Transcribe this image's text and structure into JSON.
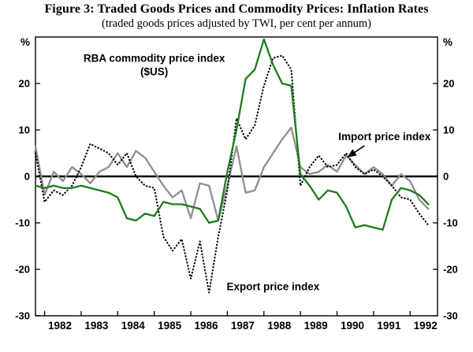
{
  "chart_data": {
    "type": "line",
    "title": "Figure 3: Traded Goods Prices and Commodity Prices: Inflation Rates",
    "subtitle": "(traded goods prices adjusted by TWI, per cent per annum)",
    "y_axis_unit": "%",
    "xlim": [
      1981.75,
      1992.75
    ],
    "ylim": [
      -30,
      30
    ],
    "y_ticks": [
      -30,
      -20,
      -10,
      0,
      10,
      20
    ],
    "x_tick_labels": [
      "1982",
      "1983",
      "1984",
      "1985",
      "1986",
      "1987",
      "1988",
      "1989",
      "1990",
      "1991",
      "1992"
    ],
    "grid": false,
    "legend": "in-plot text annotations",
    "x": [
      1981.75,
      1982,
      1982.25,
      1982.5,
      1982.75,
      1983,
      1983.25,
      1983.5,
      1983.75,
      1984,
      1984.25,
      1984.5,
      1984.75,
      1985,
      1985.25,
      1985.5,
      1985.75,
      1986,
      1986.25,
      1986.5,
      1986.75,
      1987,
      1987.25,
      1987.5,
      1987.75,
      1988,
      1988.25,
      1988.5,
      1988.75,
      1989,
      1989.25,
      1989.5,
      1989.75,
      1990,
      1990.25,
      1990.5,
      1990.75,
      1991,
      1991.25,
      1991.5,
      1991.75,
      1992,
      1992.25,
      1992.5
    ],
    "series": [
      {
        "id": "import-price-index",
        "name": "Import price index",
        "color": "#8f8f8f",
        "style": "solid",
        "width": 2.3,
        "values": [
          6.5,
          -4,
          1,
          -1,
          2,
          0.5,
          -1.5,
          1,
          2,
          5,
          2,
          5.5,
          4,
          1,
          -2,
          -4.5,
          -3,
          -9,
          -1.5,
          -2,
          -9.5,
          -2,
          6.5,
          -3.5,
          -3,
          2,
          5,
          8,
          10.5,
          2,
          0.5,
          1,
          2.5,
          1,
          4.5,
          2.5,
          0.5,
          2,
          0.5,
          -2,
          0.5,
          -1,
          -5,
          -7
        ]
      },
      {
        "id": "export-price-index",
        "name": "Export price index",
        "color": "#000000",
        "style": "dotted",
        "width": 2.1,
        "values": [
          5,
          -5.5,
          -3,
          -4,
          -2,
          2,
          7,
          6,
          5,
          2.5,
          5,
          0,
          -2,
          -2.5,
          -13,
          -16,
          -13.5,
          -22,
          -14,
          -25,
          -13,
          -3,
          12.5,
          8,
          11,
          19.5,
          25.5,
          26,
          23,
          -2,
          2,
          4.5,
          2,
          2.5,
          5,
          2,
          0.5,
          1.5,
          0,
          -2,
          -4.5,
          -5,
          -8,
          -10.5
        ]
      },
      {
        "id": "rba-commodity-price-index",
        "name": "RBA commodity price index ($US)",
        "color": "#1b7d1b",
        "style": "solid",
        "width": 2.3,
        "values": [
          -2,
          -2.5,
          -2,
          -2.5,
          -2.5,
          -2,
          -2.5,
          -3,
          -3.5,
          -4.5,
          -9,
          -9.5,
          -8,
          -8.5,
          -5.5,
          -6,
          -6,
          -6.5,
          -7,
          -10,
          -9.5,
          1,
          10,
          21,
          23,
          29.5,
          24,
          20,
          19.5,
          0.5,
          -2,
          -5,
          -3,
          -3.5,
          -6.5,
          -11,
          -10.5,
          -11,
          -11.5,
          -5,
          -2.5,
          -3,
          -4,
          -6
        ]
      }
    ],
    "annotations": [
      {
        "id": "rba-label-line1",
        "text": "RBA commodity price index",
        "x": 1985.0,
        "y": 24.7
      },
      {
        "id": "rba-label-line2",
        "text": "($US)",
        "x": 1985.0,
        "y": 21.8
      },
      {
        "id": "import-label",
        "text": "Import price index",
        "x": 1991.3,
        "y": 7.8
      },
      {
        "id": "export-label",
        "text": "Export price index",
        "x": 1988.25,
        "y": -24.5
      }
    ],
    "arrow": {
      "from": [
        1990.75,
        6.6
      ],
      "to": [
        1990.3,
        4.2
      ]
    }
  }
}
